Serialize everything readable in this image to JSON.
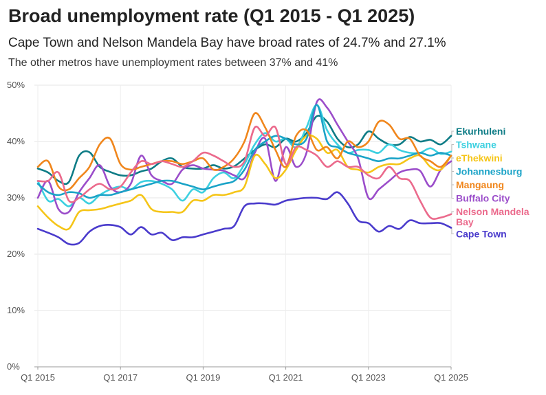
{
  "header": {
    "title": "Broad unemployment rate (Q1 2015 - Q1 2025)",
    "subtitle": "Cape Town and Nelson Mandela Bay have broad rates of 24.7% and 27.1%",
    "subtitle2": "The other metros have unemployment rates between 37% and 41%"
  },
  "chart_data": {
    "type": "line",
    "title": "Broad unemployment rate (Q1 2015 - Q1 2025)",
    "xlabel": "",
    "ylabel": "",
    "x_start": "Q1 2015",
    "x_end": "Q1 2025",
    "xlim": [
      0,
      40
    ],
    "ylim": [
      0,
      50
    ],
    "y_ticks": [
      {
        "value": 0,
        "label": "0%"
      },
      {
        "value": 10,
        "label": "10%"
      },
      {
        "value": 20,
        "label": "20%"
      },
      {
        "value": 30,
        "label": "30%"
      },
      {
        "value": 40,
        "label": "40%"
      },
      {
        "value": 50,
        "label": "50%"
      }
    ],
    "x_ticks": [
      {
        "value": 0,
        "label": "Q1 2015"
      },
      {
        "value": 8,
        "label": "Q1 2017"
      },
      {
        "value": 16,
        "label": "Q1 2019"
      },
      {
        "value": 24,
        "label": "Q1 2021"
      },
      {
        "value": 32,
        "label": "Q1 2023"
      },
      {
        "value": 40,
        "label": "Q1 2025"
      }
    ],
    "grid": true,
    "legend": "right-end labels",
    "series": [
      {
        "name": "Ekurhuleni",
        "label_lines": [
          "Ekurhuleni"
        ],
        "color": "#0e7c86",
        "values": [
          35.2,
          34.5,
          33.0,
          32.8,
          37.5,
          38.1,
          35.5,
          34.6,
          34.0,
          34.0,
          34.7,
          35.2,
          36.5,
          37.0,
          35.5,
          35.2,
          35.2,
          35.8,
          35.2,
          35.6,
          37.0,
          38.5,
          39.5,
          39.0,
          40.5,
          40.0,
          41.5,
          44.5,
          43.5,
          40.5,
          39.0,
          39.5,
          41.8,
          40.5,
          39.5,
          39.5,
          40.8,
          40.0,
          40.3,
          39.5,
          41.0
        ]
      },
      {
        "name": "Tshwane",
        "label_lines": [
          "Tshwane"
        ],
        "color": "#3dd0e0",
        "values": [
          33.0,
          29.5,
          29.8,
          28.5,
          30.0,
          29.0,
          30.5,
          31.5,
          32.0,
          31.5,
          32.8,
          33.0,
          32.5,
          31.5,
          29.5,
          31.5,
          31.0,
          33.5,
          34.5,
          33.5,
          36.0,
          39.5,
          41.5,
          40.0,
          40.5,
          39.0,
          42.5,
          46.5,
          42.0,
          39.5,
          38.0,
          38.5,
          38.5,
          38.0,
          39.5,
          38.5,
          38.0,
          38.0,
          38.8,
          37.8,
          38.2
        ]
      },
      {
        "name": "Buffalo City",
        "label_lines": [
          "Buffalo City"
        ],
        "color": "#9b4dca",
        "values": [
          30.0,
          33.0,
          28.0,
          27.5,
          31.0,
          33.5,
          35.8,
          32.0,
          31.0,
          32.5,
          37.5,
          34.0,
          33.0,
          32.5,
          35.0,
          35.8,
          35.2,
          35.0,
          34.8,
          34.0,
          33.5,
          38.0,
          40.5,
          33.0,
          39.0,
          35.5,
          38.0,
          47.0,
          46.0,
          43.0,
          40.0,
          37.0,
          30.0,
          31.5,
          33.0,
          34.5,
          35.0,
          34.8,
          32.0,
          35.0,
          36.5
        ]
      },
      {
        "name": "eThekwini",
        "label_lines": [
          "eThekwini"
        ],
        "color": "#f5c518",
        "values": [
          28.5,
          26.5,
          25.0,
          24.5,
          27.5,
          27.8,
          28.0,
          28.5,
          29.0,
          29.5,
          30.5,
          28.0,
          27.5,
          27.5,
          27.5,
          29.5,
          29.5,
          30.5,
          30.5,
          31.0,
          32.0,
          37.5,
          36.0,
          33.5,
          35.0,
          38.5,
          41.0,
          40.5,
          38.0,
          38.5,
          35.5,
          35.0,
          34.5,
          35.5,
          36.0,
          36.0,
          37.0,
          37.5,
          35.5,
          35.0,
          37.5
        ]
      },
      {
        "name": "Johannesburg",
        "label_lines": [
          "Johannesburg"
        ],
        "color": "#1aa3c7",
        "values": [
          32.5,
          31.0,
          30.5,
          31.0,
          30.8,
          30.0,
          30.5,
          30.5,
          31.0,
          31.5,
          32.0,
          32.5,
          33.0,
          33.0,
          32.5,
          32.0,
          31.5,
          32.0,
          32.5,
          33.0,
          35.0,
          38.5,
          40.0,
          41.0,
          40.5,
          39.5,
          40.5,
          46.5,
          40.0,
          39.0,
          38.0,
          37.5,
          37.0,
          36.5,
          37.0,
          37.0,
          37.5,
          38.0,
          37.5,
          38.0,
          37.5
        ]
      },
      {
        "name": "Mangaung",
        "label_lines": [
          "Mangaung"
        ],
        "color": "#f0861c",
        "values": [
          35.5,
          36.5,
          32.0,
          31.5,
          33.5,
          35.5,
          39.5,
          40.5,
          36.0,
          35.0,
          35.5,
          36.0,
          36.5,
          36.5,
          36.0,
          36.5,
          37.0,
          35.0,
          35.5,
          37.0,
          40.0,
          45.0,
          42.5,
          38.5,
          35.5,
          41.0,
          42.0,
          38.5,
          39.0,
          37.0,
          40.0,
          39.0,
          40.0,
          43.5,
          43.0,
          40.5,
          40.5,
          37.5,
          36.5,
          35.5,
          37.5
        ]
      },
      {
        "name": "Nelson Mandela Bay",
        "label_lines": [
          "Nelson Mandela",
          "Bay"
        ],
        "color": "#eb6a8c",
        "values": [
          33.0,
          33.0,
          34.5,
          29.5,
          30.0,
          31.5,
          32.5,
          31.5,
          32.0,
          34.5,
          36.5,
          36.0,
          36.5,
          36.0,
          35.5,
          36.5,
          38.0,
          37.5,
          36.5,
          35.5,
          36.5,
          42.5,
          41.0,
          42.5,
          36.0,
          39.0,
          38.5,
          37.5,
          35.5,
          36.5,
          35.5,
          35.5,
          34.0,
          33.5,
          35.5,
          33.5,
          33.0,
          29.5,
          26.5,
          26.5,
          27.1
        ]
      },
      {
        "name": "Cape Town",
        "label_lines": [
          "Cape Town"
        ],
        "color": "#4a3bcc",
        "values": [
          24.5,
          23.8,
          23.0,
          21.8,
          22.0,
          24.0,
          25.0,
          25.2,
          24.8,
          23.5,
          24.8,
          23.5,
          23.8,
          22.5,
          23.0,
          23.0,
          23.5,
          24.0,
          24.5,
          25.0,
          28.5,
          29.0,
          29.0,
          28.8,
          29.5,
          29.8,
          30.0,
          30.0,
          29.8,
          31.0,
          29.0,
          26.0,
          25.5,
          24.0,
          25.0,
          24.5,
          26.0,
          25.5,
          25.5,
          25.5,
          24.7
        ]
      }
    ]
  }
}
